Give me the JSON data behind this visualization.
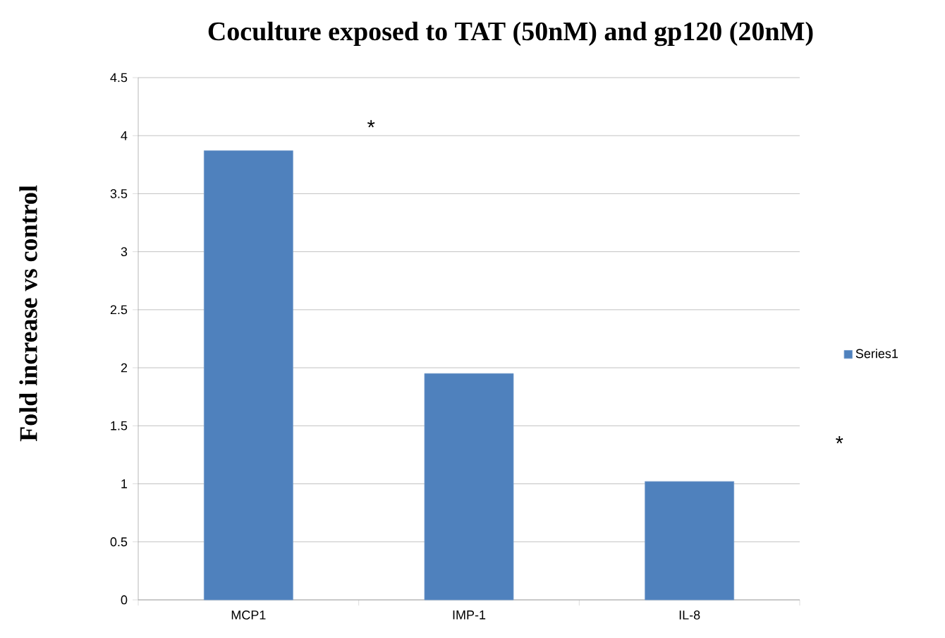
{
  "chart_data": {
    "type": "bar",
    "title": "Coculture exposed to TAT (50nM) and  gp120 (20nM)",
    "ylabel": "Fold increase vs control",
    "categories": [
      "MCP1",
      "IMP-1",
      "IL-8"
    ],
    "series": [
      {
        "name": "Series1",
        "color": "#4f81bd",
        "values": [
          3.87,
          1.95,
          1.02
        ]
      }
    ],
    "ylim": [
      0,
      4.5
    ],
    "yticks": [
      0,
      0.5,
      1,
      1.5,
      2,
      2.5,
      3,
      3.5,
      4,
      4.5
    ],
    "grid": "y",
    "legend": "right",
    "annotations": [
      "*",
      "*"
    ]
  }
}
